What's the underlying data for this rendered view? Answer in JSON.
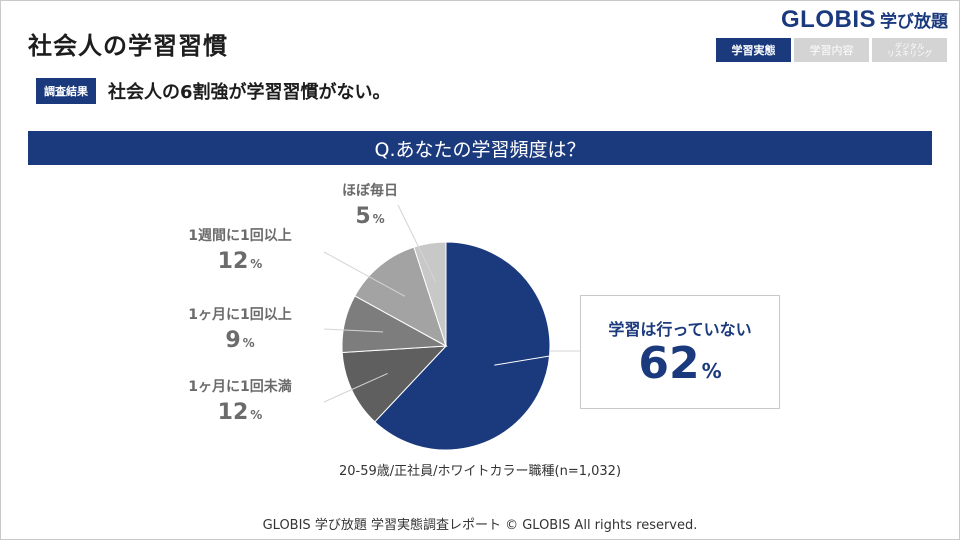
{
  "page": {
    "title": "社会人の学習習慣"
  },
  "logo": {
    "word": "GLOBIS",
    "sub": "学び放題"
  },
  "nav": {
    "tabs": [
      {
        "label": "学習実態",
        "active": true
      },
      {
        "label": "学習内容",
        "active": false
      },
      {
        "label": "デジタル\nリスキリング",
        "active": false
      }
    ]
  },
  "result": {
    "badge": "調査結果",
    "text": "社会人の6割強が学習習慣がない。"
  },
  "question": {
    "text": "Q.あなたの学習頻度は？"
  },
  "chart_data": {
    "type": "pie",
    "slices": [
      {
        "label": "学習は行っていない",
        "value": 62,
        "color": "#1b3a7d"
      },
      {
        "label": "1ヶ月に1回未満",
        "value": 12,
        "color": "#5f5f5f"
      },
      {
        "label": "1ヶ月に1回以上",
        "value": 9,
        "color": "#7d7d7d"
      },
      {
        "label": "1週間に1回以上",
        "value": 12,
        "color": "#a3a3a3"
      },
      {
        "label": "ほぼ毎日",
        "value": 5,
        "color": "#c8c8c8"
      }
    ],
    "unit": "%"
  },
  "note": "20-59歳/正社員/ホワイトカラー職種(n=1,032)",
  "footer": "GLOBIS 学び放題 学習実態調査レポート © GLOBIS All rights reserved."
}
